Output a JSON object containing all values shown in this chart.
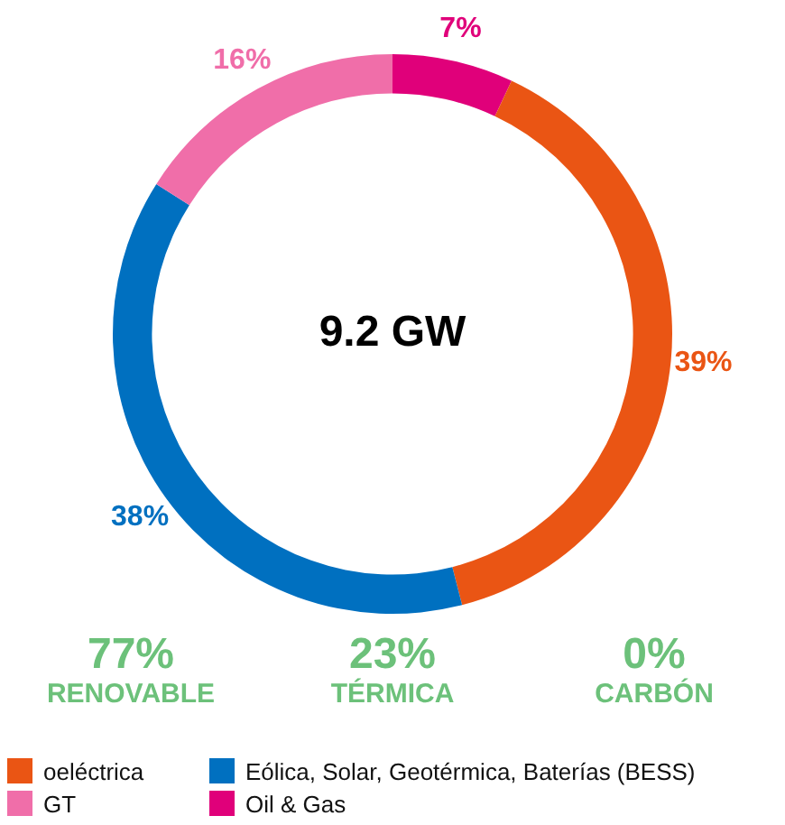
{
  "chart_data": {
    "type": "donut",
    "title": "9.2 GW",
    "categories": [
      "Oil & Gas",
      "oeléctrica",
      "Eólica, Solar, Geotérmica, Baterías (BESS)",
      "GT"
    ],
    "values": [
      7,
      39,
      38,
      16
    ],
    "colors": [
      "#e0007a",
      "#ea5514",
      "#0070c0",
      "#f06ea9"
    ],
    "value_labels": [
      "7%",
      "39%",
      "38%",
      "16%"
    ],
    "legend": "bottom",
    "annotations": [
      "77%",
      "RENOVABLE",
      "23%",
      "TÉRMICA",
      "0%",
      "CARBÓN"
    ]
  }
}
